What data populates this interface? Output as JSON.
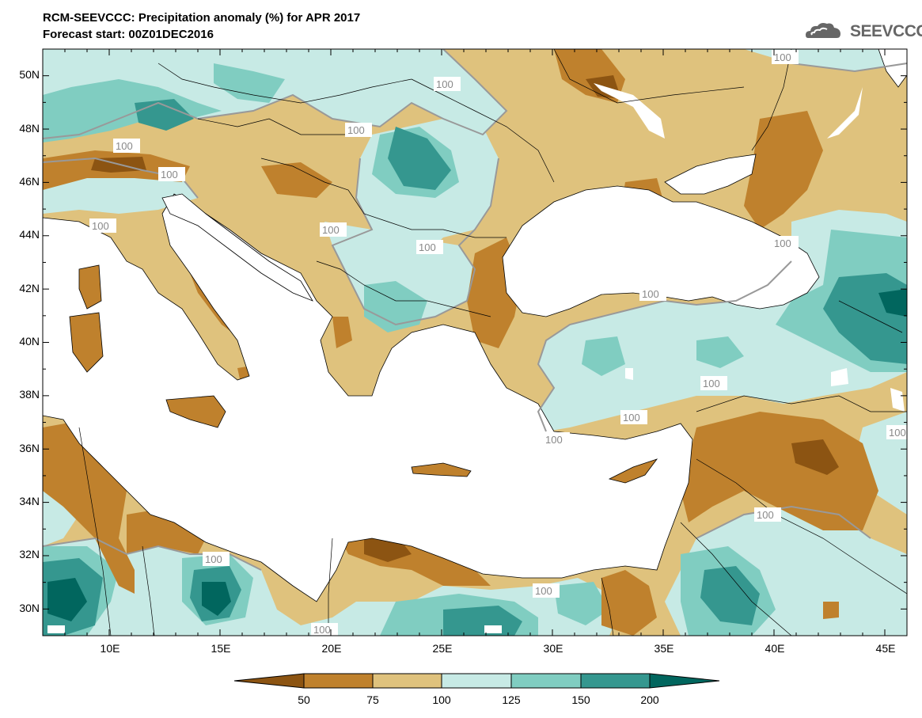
{
  "header": {
    "title": "RCM-SEEVCCC: Precipitation anomaly (%) for APR 2017",
    "subtitle": "Forecast start: 00Z01DEC2016",
    "logo_text": "SEEVCCC"
  },
  "map": {
    "lon_range": [
      7,
      46
    ],
    "lat_range": [
      29,
      51
    ],
    "y_ticks": [
      "50N",
      "48N",
      "46N",
      "44N",
      "42N",
      "40N",
      "38N",
      "36N",
      "34N",
      "32N",
      "30N"
    ],
    "x_ticks": [
      "10E",
      "15E",
      "20E",
      "25E",
      "30E",
      "35E",
      "40E",
      "45E"
    ],
    "contour_label": "100",
    "sea_color": "#ffffff"
  },
  "colorbar": {
    "levels": [
      "50",
      "75",
      "100",
      "125",
      "150",
      "200"
    ],
    "colors": [
      "#8c5412",
      "#bf812d",
      "#dfc27d",
      "#c7eae5",
      "#80cdc1",
      "#35978f",
      "#01665e"
    ]
  }
}
